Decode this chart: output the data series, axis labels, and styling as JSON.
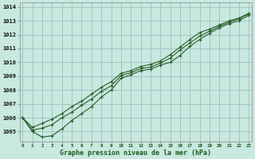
{
  "title": "Graphe pression niveau de la mer (hPa)",
  "background_color": "#c8e8e0",
  "grid_color": "#a0c8c0",
  "line_color": "#2a5e2a",
  "x_label_color": "#1a5c1a",
  "yticks": [
    1005,
    1006,
    1007,
    1008,
    1009,
    1010,
    1011,
    1012,
    1013,
    1014
  ],
  "xticks": [
    0,
    1,
    2,
    3,
    4,
    5,
    6,
    7,
    8,
    9,
    10,
    11,
    12,
    13,
    14,
    15,
    16,
    17,
    18,
    19,
    20,
    21,
    22,
    23
  ],
  "ylim": [
    1004.3,
    1014.3
  ],
  "xlim": [
    -0.3,
    23.3
  ],
  "series": [
    [
      1006.0,
      1005.0,
      1004.6,
      1004.7,
      1005.2,
      1005.8,
      1006.3,
      1006.8,
      1007.5,
      1008.0,
      1008.85,
      1009.1,
      1009.4,
      1009.5,
      1009.8,
      1010.0,
      1010.5,
      1011.15,
      1011.65,
      1012.1,
      1012.5,
      1012.8,
      1013.0,
      1013.4
    ],
    [
      1006.0,
      1005.1,
      1005.25,
      1005.5,
      1006.0,
      1006.4,
      1006.9,
      1007.35,
      1007.9,
      1008.3,
      1009.05,
      1009.25,
      1009.55,
      1009.65,
      1009.95,
      1010.3,
      1010.9,
      1011.4,
      1011.9,
      1012.25,
      1012.6,
      1012.9,
      1013.15,
      1013.5
    ],
    [
      1006.0,
      1005.3,
      1005.6,
      1005.9,
      1006.3,
      1006.8,
      1007.2,
      1007.7,
      1008.2,
      1008.6,
      1009.2,
      1009.4,
      1009.7,
      1009.85,
      1010.1,
      1010.55,
      1011.1,
      1011.65,
      1012.15,
      1012.4,
      1012.7,
      1013.0,
      1013.2,
      1013.55
    ]
  ]
}
